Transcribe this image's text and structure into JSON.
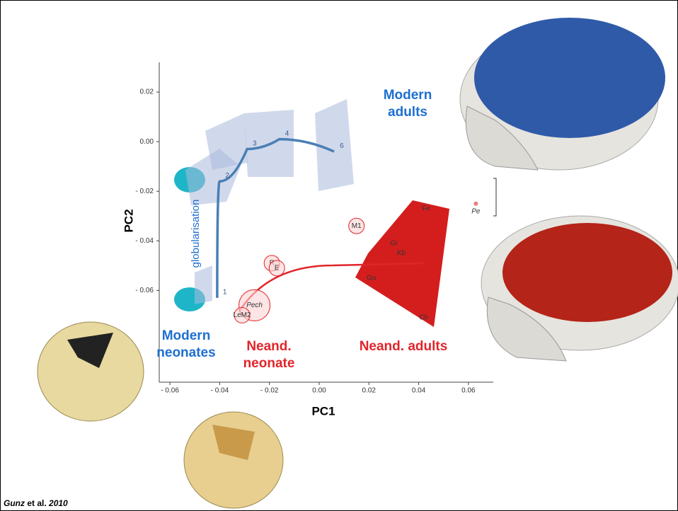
{
  "chart_data": {
    "type": "scatter",
    "xlabel": "PC1",
    "ylabel": "PC2",
    "xlim": [
      -0.0643,
      0.07
    ],
    "ylim": [
      -0.097,
      0.032
    ],
    "xticks": [
      {
        "value": -0.06,
        "label": "- 0.06"
      },
      {
        "value": -0.04,
        "label": "- 0.04"
      },
      {
        "value": -0.02,
        "label": "- 0.02"
      },
      {
        "value": 0,
        "label": "0.00"
      },
      {
        "value": 0.02,
        "label": "0.02"
      },
      {
        "value": 0.04,
        "label": "0.04"
      },
      {
        "value": 0.06,
        "label": "0.06"
      }
    ],
    "yticks": [
      {
        "value": 0.02,
        "label": "0.02"
      },
      {
        "value": 0,
        "label": "0.00"
      },
      {
        "value": -0.02,
        "label": "- 0.02"
      },
      {
        "value": -0.04,
        "label": "- 0.04"
      },
      {
        "value": -0.06,
        "label": "- 0.06"
      }
    ],
    "series": [
      {
        "mode": "line",
        "color": "#4a7fb5",
        "x": [
          -0.041,
          -0.04,
          -0.029,
          -0.016,
          0.006
        ],
        "values": [
          -0.063,
          -0.016,
          -0.003,
          0.001,
          -0.004
        ],
        "labels": [
          "1",
          "2",
          "3",
          "4",
          "6"
        ]
      },
      {
        "mode": "markers",
        "color": "#e0252a",
        "x": [
          0.015,
          -0.019,
          -0.017,
          -0.026,
          -0.031,
          0.03,
          0.033,
          0.021,
          0.043,
          0.042,
          0.063
        ],
        "values": [
          -0.034,
          -0.049,
          -0.051,
          -0.066,
          -0.07,
          -0.041,
          -0.045,
          -0.055,
          -0.027,
          -0.071,
          -0.025
        ],
        "labels": [
          "M1",
          "R",
          "E",
          "Pech",
          "LeM2",
          "Gi",
          "Kb",
          "Gu",
          "Fe",
          "Ch",
          "Pe"
        ]
      }
    ],
    "annotations": [
      {
        "lines": [
          "Modern",
          "adults"
        ],
        "color": "#1f6fd0"
      },
      {
        "lines": [
          "Modern",
          "neonates"
        ],
        "color": "#1f6fd0"
      },
      {
        "lines": [
          "Neand.",
          "neonate"
        ],
        "color": "#e0252a"
      },
      {
        "lines": [
          "Neand. adults"
        ],
        "color": "#e0252a"
      },
      {
        "lines": [
          "globularisation"
        ],
        "color": "#1f6fd0"
      }
    ]
  },
  "citation": {
    "author": "Gunz",
    "middle": " et al. ",
    "year": "2010"
  }
}
